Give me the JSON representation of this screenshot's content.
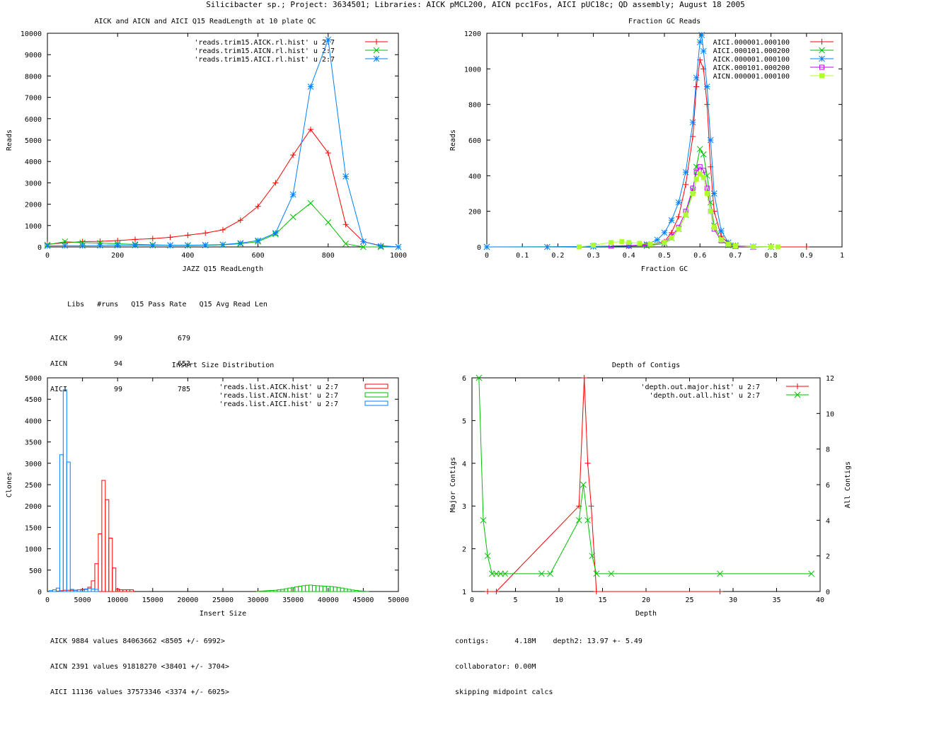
{
  "page_title": "Silicibacter sp.; Project: 3634501; Libraries: AICK pMCL200, AICN pcc1Fos, AICI pUC18c; QD assembly; August 18 2005",
  "colors": {
    "red": "#ff0000",
    "green": "#00c000",
    "blue": "#0080ff",
    "purple": "#c000ff",
    "lime": "#adff2f",
    "text": "#000000"
  },
  "readlength_stats": {
    "header": [
      "Libs",
      "#runs",
      "Q15 Pass Rate",
      "Q15 Avg Read Len"
    ],
    "rows": [
      [
        "AICK",
        "99",
        "",
        "679"
      ],
      [
        "AICN",
        "94",
        "",
        "653"
      ],
      [
        "AICI",
        "99",
        "",
        "785"
      ]
    ]
  },
  "insert_stats": [
    "AICK 9884 values 84063662 <8505 +/- 6992>",
    "AICN 2391 values 91818270 <38401 +/- 3704>",
    "AICI 11136 values 37573346 <3374 +/- 6025>"
  ],
  "depth_stats": [
    "contigs:      4.18M    depth2: 13.97 +- 5.49",
    "collaborator: 0.00M",
    "skipping midpoint calcs"
  ],
  "chart_data": [
    {
      "type": "line",
      "title": "AICK and AICN and AICI Q15 ReadLength at 10 plate QC",
      "xlabel": "JAZZ Q15 ReadLength",
      "ylabel": "Reads",
      "xlim": [
        0,
        1000
      ],
      "ylim": [
        0,
        10000
      ],
      "xticks": [
        0,
        200,
        400,
        600,
        800,
        1000
      ],
      "yticks": [
        0,
        1000,
        2000,
        3000,
        4000,
        5000,
        6000,
        7000,
        8000,
        9000,
        10000
      ],
      "legend_position": "top-right",
      "series": [
        {
          "name": "'reads.trim15.AICK.rl.hist' u 2:7",
          "color": "#ff0000",
          "marker": "plus",
          "x": [
            0,
            50,
            100,
            150,
            200,
            250,
            300,
            350,
            400,
            450,
            500,
            550,
            600,
            650,
            700,
            750,
            800,
            850,
            900,
            950,
            1000
          ],
          "y": [
            130,
            190,
            250,
            260,
            300,
            350,
            390,
            450,
            550,
            650,
            800,
            1250,
            1900,
            3000,
            4300,
            5500,
            4400,
            1050,
            250,
            60,
            0
          ]
        },
        {
          "name": "'reads.trim15.AICN.rl.hist' u 2:7",
          "color": "#00c000",
          "marker": "cross",
          "x": [
            0,
            50,
            100,
            150,
            200,
            250,
            300,
            350,
            400,
            450,
            500,
            550,
            600,
            650,
            700,
            750,
            800,
            850,
            900,
            950,
            1000
          ],
          "y": [
            100,
            250,
            200,
            180,
            150,
            120,
            100,
            80,
            70,
            80,
            100,
            150,
            250,
            600,
            1400,
            2050,
            1150,
            150,
            0,
            0,
            0
          ]
        },
        {
          "name": "'reads.trim15.AICI.rl.hist' u 2:7",
          "color": "#0080ff",
          "marker": "star",
          "x": [
            0,
            50,
            100,
            150,
            200,
            250,
            300,
            350,
            400,
            450,
            500,
            550,
            600,
            650,
            700,
            750,
            800,
            850,
            900,
            950,
            1000
          ],
          "y": [
            50,
            60,
            60,
            70,
            80,
            80,
            80,
            80,
            80,
            90,
            110,
            180,
            300,
            650,
            2450,
            7500,
            9700,
            3300,
            250,
            40,
            0
          ]
        }
      ]
    },
    {
      "type": "line",
      "title": "Fraction GC Reads",
      "xlabel": "Fraction GC",
      "ylabel": "Reads",
      "xlim": [
        0,
        1
      ],
      "ylim": [
        0,
        1200
      ],
      "xticks": [
        0,
        0.1,
        0.2,
        0.3,
        0.4,
        0.5,
        0.6,
        0.7,
        0.8,
        0.9,
        1
      ],
      "yticks": [
        0,
        200,
        400,
        600,
        800,
        1000,
        1200
      ],
      "legend_position": "top-right",
      "series": [
        {
          "name": "AICI.000001.000100",
          "color": "#ff0000",
          "marker": "plus",
          "x": [
            0.0,
            0.17,
            0.3,
            0.4,
            0.45,
            0.5,
            0.52,
            0.54,
            0.56,
            0.58,
            0.59,
            0.6,
            0.61,
            0.62,
            0.63,
            0.64,
            0.66,
            0.68,
            0.7,
            0.75,
            0.8,
            0.9
          ],
          "y": [
            0,
            0,
            2,
            5,
            10,
            30,
            80,
            170,
            350,
            620,
            900,
            1050,
            1000,
            800,
            450,
            200,
            60,
            20,
            8,
            2,
            0,
            0
          ]
        },
        {
          "name": "AICI.000101.000200",
          "color": "#00c000",
          "marker": "cross",
          "x": [
            0.0,
            0.3,
            0.45,
            0.5,
            0.52,
            0.54,
            0.56,
            0.58,
            0.59,
            0.6,
            0.61,
            0.62,
            0.63,
            0.64,
            0.66,
            0.68,
            0.7,
            0.75,
            0.8
          ],
          "y": [
            0,
            2,
            6,
            20,
            50,
            100,
            180,
            320,
            450,
            550,
            520,
            400,
            250,
            120,
            40,
            10,
            4,
            1,
            0
          ]
        },
        {
          "name": "AICK.000001.000100",
          "color": "#0080ff",
          "marker": "star",
          "x": [
            0.0,
            0.17,
            0.3,
            0.4,
            0.45,
            0.48,
            0.5,
            0.52,
            0.54,
            0.56,
            0.58,
            0.59,
            0.6,
            0.605,
            0.61,
            0.62,
            0.63,
            0.64,
            0.66,
            0.68,
            0.7,
            0.75,
            0.8
          ],
          "y": [
            0,
            0,
            3,
            5,
            15,
            40,
            80,
            150,
            250,
            420,
            700,
            950,
            1150,
            1190,
            1100,
            900,
            600,
            300,
            90,
            25,
            8,
            2,
            0
          ]
        },
        {
          "name": "AICK.000101.000200",
          "color": "#c000ff",
          "marker": "square",
          "x": [
            0.35,
            0.4,
            0.45,
            0.5,
            0.52,
            0.54,
            0.56,
            0.58,
            0.59,
            0.6,
            0.61,
            0.62,
            0.63,
            0.64,
            0.66,
            0.68,
            0.7,
            0.75
          ],
          "y": [
            5,
            8,
            10,
            25,
            60,
            110,
            200,
            330,
            420,
            450,
            430,
            330,
            200,
            100,
            35,
            10,
            4,
            0
          ]
        },
        {
          "name": "AICN.000001.000100",
          "color": "#adff2f",
          "marker": "filled-square",
          "x": [
            0.26,
            0.3,
            0.35,
            0.38,
            0.4,
            0.43,
            0.46,
            0.5,
            0.52,
            0.54,
            0.56,
            0.58,
            0.59,
            0.6,
            0.61,
            0.62,
            0.63,
            0.64,
            0.66,
            0.68,
            0.7,
            0.75,
            0.8,
            0.82
          ],
          "y": [
            0,
            10,
            25,
            30,
            25,
            20,
            15,
            25,
            50,
            100,
            180,
            300,
            380,
            410,
            390,
            300,
            200,
            110,
            40,
            15,
            6,
            2,
            0,
            0
          ]
        }
      ]
    },
    {
      "type": "bar",
      "title": "Insert Size Distribution",
      "xlabel": "Insert Size",
      "ylabel": "Clones",
      "xlim": [
        0,
        50000
      ],
      "ylim": [
        0,
        5000
      ],
      "xticks": [
        0,
        5000,
        10000,
        15000,
        20000,
        25000,
        30000,
        35000,
        40000,
        45000,
        50000
      ],
      "yticks": [
        0,
        500,
        1000,
        1500,
        2000,
        2500,
        3000,
        3500,
        4000,
        4500,
        5000
      ],
      "legend_position": "top-right",
      "series": [
        {
          "name": "'reads.list.AICK.hist' u 2:7",
          "color": "#ff0000",
          "x": [
            1500,
            2000,
            2500,
            3000,
            3500,
            4000,
            4500,
            5000,
            5500,
            6000,
            6500,
            7000,
            7500,
            8000,
            8500,
            9000,
            9500,
            10000,
            10500,
            11000,
            11500,
            12000
          ],
          "y": [
            10,
            20,
            30,
            30,
            30,
            30,
            40,
            50,
            50,
            100,
            250,
            650,
            1350,
            2600,
            2150,
            1250,
            550,
            60,
            40,
            40,
            40,
            40
          ]
        },
        {
          "name": "'reads.list.AICN.hist' u 2:7",
          "color": "#00c000",
          "x": [
            30000,
            30500,
            31000,
            31500,
            32000,
            32500,
            33000,
            33500,
            34000,
            34500,
            35000,
            35500,
            36000,
            36500,
            37000,
            37500,
            38000,
            38500,
            39000,
            39500,
            40000,
            40500,
            41000,
            41500,
            42000,
            42500,
            43000,
            43500,
            44000,
            44500,
            45000,
            45500
          ],
          "y": [
            5,
            10,
            15,
            20,
            25,
            30,
            40,
            50,
            65,
            80,
            95,
            110,
            125,
            135,
            145,
            150,
            140,
            135,
            130,
            125,
            120,
            115,
            105,
            95,
            80,
            65,
            50,
            35,
            25,
            15,
            8,
            3
          ]
        },
        {
          "name": "'reads.list.AICI.hist' u 2:7",
          "color": "#0080ff",
          "x": [
            500,
            1000,
            1500,
            2000,
            2500,
            3000,
            3500,
            4000,
            4500,
            5000,
            5500,
            6000,
            6500,
            7000
          ],
          "y": [
            20,
            40,
            80,
            3200,
            4720,
            3030,
            50,
            30,
            40,
            40,
            60,
            70,
            60,
            50
          ]
        }
      ]
    },
    {
      "type": "line",
      "title": "Depth of Contigs",
      "xlabel": "Depth",
      "ylabel": "Major Contigs",
      "y2label": "All Contigs",
      "xlim": [
        0,
        40
      ],
      "ylim": [
        1,
        6
      ],
      "y2lim": [
        0,
        12
      ],
      "xticks": [
        0,
        5,
        10,
        15,
        20,
        25,
        30,
        35,
        40
      ],
      "yticks": [
        1,
        2,
        3,
        4,
        5,
        6
      ],
      "y2ticks": [
        0,
        2,
        4,
        6,
        8,
        10,
        12
      ],
      "legend_position": "top-right",
      "series": [
        {
          "name": "'depth.out.major.hist' u 2:7",
          "color": "#ff0000",
          "marker": "plus",
          "axis": "y",
          "x": [
            1.8,
            2.8,
            12.3,
            12.9,
            13.3,
            13.7,
            14.3,
            28.5
          ],
          "y": [
            1,
            1,
            3,
            6,
            4,
            3,
            1,
            1
          ]
        },
        {
          "name": "'depth.out.all.hist' u 2:7",
          "color": "#00c000",
          "marker": "cross",
          "axis": "y2",
          "x": [
            0.8,
            1.3,
            1.8,
            2.3,
            2.8,
            3.3,
            3.8,
            8.0,
            9.0,
            12.3,
            12.8,
            13.3,
            13.8,
            14.3,
            16.0,
            28.5,
            39.0
          ],
          "y": [
            12,
            4,
            2,
            1,
            1,
            1,
            1,
            1,
            1,
            4,
            6,
            4,
            2,
            1,
            1,
            1,
            1
          ]
        }
      ]
    }
  ]
}
